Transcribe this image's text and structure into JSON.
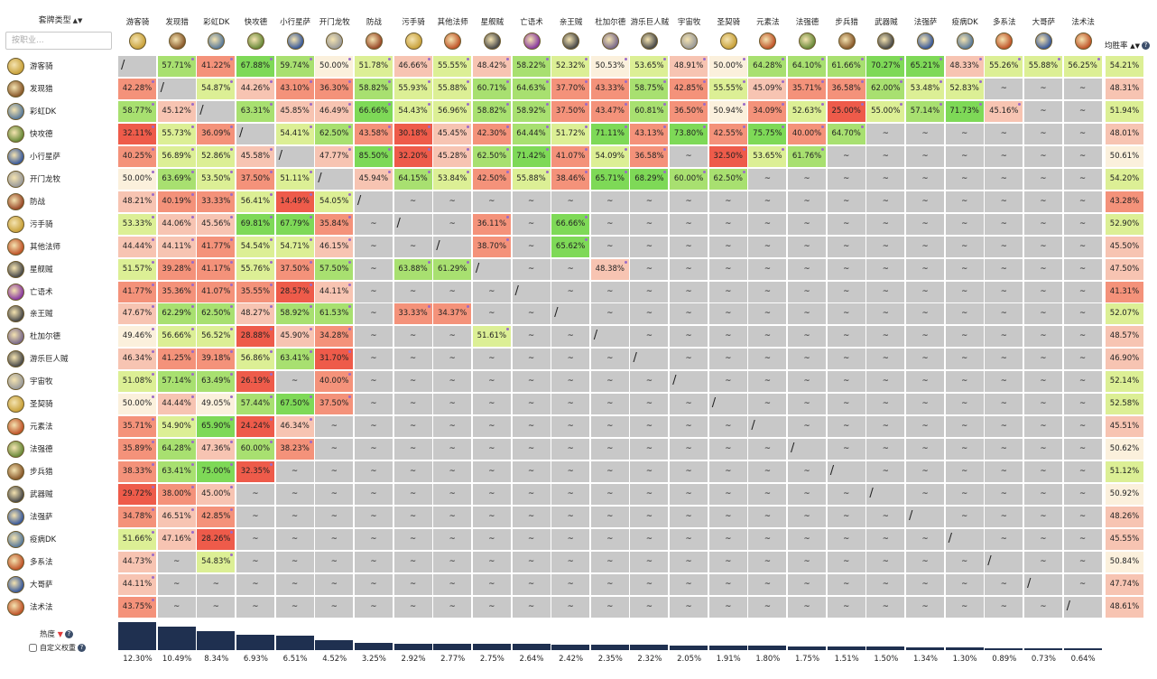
{
  "header": {
    "deck_type_label": "套牌类型",
    "search_placeholder": "按职业...",
    "avg_label": "均胜率",
    "popularity_label": "热度",
    "custom_weight_label": "自定义权重"
  },
  "colors": {
    "strong_green": "#7ed957",
    "green": "#a8e070",
    "light_green": "#dcef95",
    "neutral": "#fbf0dc",
    "light_red": "#f7c4b2",
    "red": "#f4927a",
    "strong_red": "#ee5b4a",
    "empty": "#c8c8c8",
    "bar": "#1f3050"
  },
  "decks": [
    {
      "name": "游客骑",
      "icon_color": "#c9a23c"
    },
    {
      "name": "发现猎",
      "icon_color": "#8a5a2c"
    },
    {
      "name": "彩虹DK",
      "icon_color": "#5a7a9a"
    },
    {
      "name": "快攻德",
      "icon_color": "#6a8a3a"
    },
    {
      "name": "小行星萨",
      "icon_color": "#3a5a9a"
    },
    {
      "name": "开门龙牧",
      "icon_color": "#9a9a9a"
    },
    {
      "name": "防战",
      "icon_color": "#9a4a2a"
    },
    {
      "name": "污手骑",
      "icon_color": "#c9a23c"
    },
    {
      "name": "其他法师",
      "icon_color": "#c0552a"
    },
    {
      "name": "星舰贼",
      "icon_color": "#4a4a4a"
    },
    {
      "name": "亡语术",
      "icon_color": "#8a3aa0"
    },
    {
      "name": "亲王贼",
      "icon_color": "#4a4a4a"
    },
    {
      "name": "杜加尔德",
      "icon_color": "#7a6a8a"
    },
    {
      "name": "游乐巨人贼",
      "icon_color": "#4a4a4a"
    },
    {
      "name": "宇宙牧",
      "icon_color": "#9a9a9a"
    },
    {
      "name": "圣契骑",
      "icon_color": "#c9a23c"
    },
    {
      "name": "元素法",
      "icon_color": "#c0552a"
    },
    {
      "name": "法强德",
      "icon_color": "#6a8a3a"
    },
    {
      "name": "步兵猎",
      "icon_color": "#8a5a2c"
    },
    {
      "name": "武器贼",
      "icon_color": "#4a4a4a"
    },
    {
      "name": "法强萨",
      "icon_color": "#3a5a9a"
    },
    {
      "name": "疫病DK",
      "icon_color": "#5a7a9a"
    },
    {
      "name": "多系法",
      "icon_color": "#c0552a"
    },
    {
      "name": "大哥萨",
      "icon_color": "#3a5a9a"
    },
    {
      "name": "法术法",
      "icon_color": "#c0552a"
    }
  ],
  "matrix": [
    [
      "/",
      "57.71%",
      "41.22%",
      "67.88%",
      "59.74%",
      "50.00%",
      "51.78%",
      "46.66%",
      "55.55%",
      "48.42%",
      "58.22%",
      "52.32%",
      "50.53%",
      "53.65%",
      "48.91%",
      "50.00%",
      "64.28%",
      "64.10%",
      "61.66%",
      "70.27%",
      "65.21%",
      "48.33%",
      "55.26%",
      "55.88%",
      "56.25%"
    ],
    [
      "42.28%",
      "/",
      "54.87%",
      "44.26%",
      "43.10%",
      "36.30%",
      "58.82%",
      "55.93%",
      "55.88%",
      "60.71%",
      "64.63%",
      "37.70%",
      "43.33%",
      "58.75%",
      "42.85%",
      "55.55%",
      "45.09%",
      "35.71%",
      "36.58%",
      "62.00%",
      "53.48%",
      "52.83%",
      "~",
      "~",
      "~"
    ],
    [
      "58.77%",
      "45.12%",
      "/",
      "63.31%",
      "45.85%",
      "46.49%",
      "66.66%",
      "54.43%",
      "56.96%",
      "58.82%",
      "58.92%",
      "37.50%",
      "43.47%",
      "60.81%",
      "36.50%",
      "50.94%",
      "34.09%",
      "52.63%",
      "25.00%",
      "55.00%",
      "57.14%",
      "71.73%",
      "45.16%",
      "~",
      "~"
    ],
    [
      "32.11%",
      "55.73%",
      "36.09%",
      "/",
      "54.41%",
      "62.50%",
      "43.58%",
      "30.18%",
      "45.45%",
      "42.30%",
      "64.44%",
      "51.72%",
      "71.11%",
      "43.13%",
      "73.80%",
      "42.55%",
      "75.75%",
      "40.00%",
      "64.70%",
      "~",
      "~",
      "~",
      "~",
      "~",
      "~"
    ],
    [
      "40.25%",
      "56.89%",
      "52.86%",
      "45.58%",
      "/",
      "47.77%",
      "85.50%",
      "32.20%",
      "45.28%",
      "62.50%",
      "71.42%",
      "41.07%",
      "54.09%",
      "36.58%",
      "~",
      "32.50%",
      "53.65%",
      "61.76%",
      "~",
      "~",
      "~",
      "~",
      "~",
      "~",
      "~"
    ],
    [
      "50.00%",
      "63.69%",
      "53.50%",
      "37.50%",
      "51.11%",
      "/",
      "45.94%",
      "64.15%",
      "53.84%",
      "42.50%",
      "55.88%",
      "38.46%",
      "65.71%",
      "68.29%",
      "60.00%",
      "62.50%",
      "~",
      "~",
      "~",
      "~",
      "~",
      "~",
      "~",
      "~",
      "~"
    ],
    [
      "48.21%",
      "40.19%",
      "33.33%",
      "56.41%",
      "14.49%",
      "54.05%",
      "/",
      "~",
      "~",
      "~",
      "~",
      "~",
      "~",
      "~",
      "~",
      "~",
      "~",
      "~",
      "~",
      "~",
      "~",
      "~",
      "~",
      "~",
      "~"
    ],
    [
      "53.33%",
      "44.06%",
      "45.56%",
      "69.81%",
      "67.79%",
      "35.84%",
      "~",
      "/",
      "~",
      "36.11%",
      "~",
      "66.66%",
      "~",
      "~",
      "~",
      "~",
      "~",
      "~",
      "~",
      "~",
      "~",
      "~",
      "~",
      "~",
      "~"
    ],
    [
      "44.44%",
      "44.11%",
      "41.77%",
      "54.54%",
      "54.71%",
      "46.15%",
      "~",
      "~",
      "/",
      "38.70%",
      "~",
      "65.62%",
      "~",
      "~",
      "~",
      "~",
      "~",
      "~",
      "~",
      "~",
      "~",
      "~",
      "~",
      "~",
      "~"
    ],
    [
      "51.57%",
      "39.28%",
      "41.17%",
      "55.76%",
      "37.50%",
      "57.50%",
      "~",
      "63.88%",
      "61.29%",
      "/",
      "~",
      "~",
      "48.38%",
      "~",
      "~",
      "~",
      "~",
      "~",
      "~",
      "~",
      "~",
      "~",
      "~",
      "~",
      "~"
    ],
    [
      "41.77%",
      "35.36%",
      "41.07%",
      "35.55%",
      "28.57%",
      "44.11%",
      "~",
      "~",
      "~",
      "~",
      "/",
      "~",
      "~",
      "~",
      "~",
      "~",
      "~",
      "~",
      "~",
      "~",
      "~",
      "~",
      "~",
      "~",
      "~"
    ],
    [
      "47.67%",
      "62.29%",
      "62.50%",
      "48.27%",
      "58.92%",
      "61.53%",
      "~",
      "33.33%",
      "34.37%",
      "~",
      "~",
      "/",
      "~",
      "~",
      "~",
      "~",
      "~",
      "~",
      "~",
      "~",
      "~",
      "~",
      "~",
      "~",
      "~"
    ],
    [
      "49.46%",
      "56.66%",
      "56.52%",
      "28.88%",
      "45.90%",
      "34.28%",
      "~",
      "~",
      "~",
      "51.61%",
      "~",
      "~",
      "/",
      "~",
      "~",
      "~",
      "~",
      "~",
      "~",
      "~",
      "~",
      "~",
      "~",
      "~",
      "~"
    ],
    [
      "46.34%",
      "41.25%",
      "39.18%",
      "56.86%",
      "63.41%",
      "31.70%",
      "~",
      "~",
      "~",
      "~",
      "~",
      "~",
      "~",
      "/",
      "~",
      "~",
      "~",
      "~",
      "~",
      "~",
      "~",
      "~",
      "~",
      "~",
      "~"
    ],
    [
      "51.08%",
      "57.14%",
      "63.49%",
      "26.19%",
      "~",
      "40.00%",
      "~",
      "~",
      "~",
      "~",
      "~",
      "~",
      "~",
      "~",
      "/",
      "~",
      "~",
      "~",
      "~",
      "~",
      "~",
      "~",
      "~",
      "~",
      "~"
    ],
    [
      "50.00%",
      "44.44%",
      "49.05%",
      "57.44%",
      "67.50%",
      "37.50%",
      "~",
      "~",
      "~",
      "~",
      "~",
      "~",
      "~",
      "~",
      "~",
      "/",
      "~",
      "~",
      "~",
      "~",
      "~",
      "~",
      "~",
      "~",
      "~"
    ],
    [
      "35.71%",
      "54.90%",
      "65.90%",
      "24.24%",
      "46.34%",
      "~",
      "~",
      "~",
      "~",
      "~",
      "~",
      "~",
      "~",
      "~",
      "~",
      "~",
      "/",
      "~",
      "~",
      "~",
      "~",
      "~",
      "~",
      "~",
      "~"
    ],
    [
      "35.89%",
      "64.28%",
      "47.36%",
      "60.00%",
      "38.23%",
      "~",
      "~",
      "~",
      "~",
      "~",
      "~",
      "~",
      "~",
      "~",
      "~",
      "~",
      "~",
      "/",
      "~",
      "~",
      "~",
      "~",
      "~",
      "~",
      "~"
    ],
    [
      "38.33%",
      "63.41%",
      "75.00%",
      "32.35%",
      "~",
      "~",
      "~",
      "~",
      "~",
      "~",
      "~",
      "~",
      "~",
      "~",
      "~",
      "~",
      "~",
      "~",
      "/",
      "~",
      "~",
      "~",
      "~",
      "~",
      "~"
    ],
    [
      "29.72%",
      "38.00%",
      "45.00%",
      "~",
      "~",
      "~",
      "~",
      "~",
      "~",
      "~",
      "~",
      "~",
      "~",
      "~",
      "~",
      "~",
      "~",
      "~",
      "~",
      "/",
      "~",
      "~",
      "~",
      "~",
      "~"
    ],
    [
      "34.78%",
      "46.51%",
      "42.85%",
      "~",
      "~",
      "~",
      "~",
      "~",
      "~",
      "~",
      "~",
      "~",
      "~",
      "~",
      "~",
      "~",
      "~",
      "~",
      "~",
      "~",
      "/",
      "~",
      "~",
      "~",
      "~"
    ],
    [
      "51.66%",
      "47.16%",
      "28.26%",
      "~",
      "~",
      "~",
      "~",
      "~",
      "~",
      "~",
      "~",
      "~",
      "~",
      "~",
      "~",
      "~",
      "~",
      "~",
      "~",
      "~",
      "~",
      "/",
      "~",
      "~",
      "~"
    ],
    [
      "44.73%",
      "~",
      "54.83%",
      "~",
      "~",
      "~",
      "~",
      "~",
      "~",
      "~",
      "~",
      "~",
      "~",
      "~",
      "~",
      "~",
      "~",
      "~",
      "~",
      "~",
      "~",
      "~",
      "/",
      "~",
      "~"
    ],
    [
      "44.11%",
      "~",
      "~",
      "~",
      "~",
      "~",
      "~",
      "~",
      "~",
      "~",
      "~",
      "~",
      "~",
      "~",
      "~",
      "~",
      "~",
      "~",
      "~",
      "~",
      "~",
      "~",
      "~",
      "/",
      "~"
    ],
    [
      "43.75%",
      "~",
      "~",
      "~",
      "~",
      "~",
      "~",
      "~",
      "~",
      "~",
      "~",
      "~",
      "~",
      "~",
      "~",
      "~",
      "~",
      "~",
      "~",
      "~",
      "~",
      "~",
      "~",
      "~",
      "/"
    ]
  ],
  "averages": [
    "54.21%",
    "48.31%",
    "51.94%",
    "48.01%",
    "50.61%",
    "54.20%",
    "43.28%",
    "52.90%",
    "45.50%",
    "47.50%",
    "41.31%",
    "52.07%",
    "48.57%",
    "46.90%",
    "52.14%",
    "52.58%",
    "45.51%",
    "50.62%",
    "51.12%",
    "50.92%",
    "48.26%",
    "45.55%",
    "50.84%",
    "47.74%",
    "48.61%"
  ],
  "popularity": [
    12.3,
    10.49,
    8.34,
    6.93,
    6.51,
    4.52,
    3.25,
    2.92,
    2.77,
    2.75,
    2.64,
    2.42,
    2.35,
    2.32,
    2.05,
    1.91,
    1.8,
    1.75,
    1.51,
    1.5,
    1.34,
    1.3,
    0.89,
    0.73,
    0.64
  ],
  "popularity_labels": [
    "12.30%",
    "10.49%",
    "8.34%",
    "6.93%",
    "6.51%",
    "4.52%",
    "3.25%",
    "2.92%",
    "2.77%",
    "2.75%",
    "2.64%",
    "2.42%",
    "2.35%",
    "2.32%",
    "2.05%",
    "1.91%",
    "1.80%",
    "1.75%",
    "1.51%",
    "1.50%",
    "1.34%",
    "1.30%",
    "0.89%",
    "0.73%",
    "0.64%"
  ]
}
